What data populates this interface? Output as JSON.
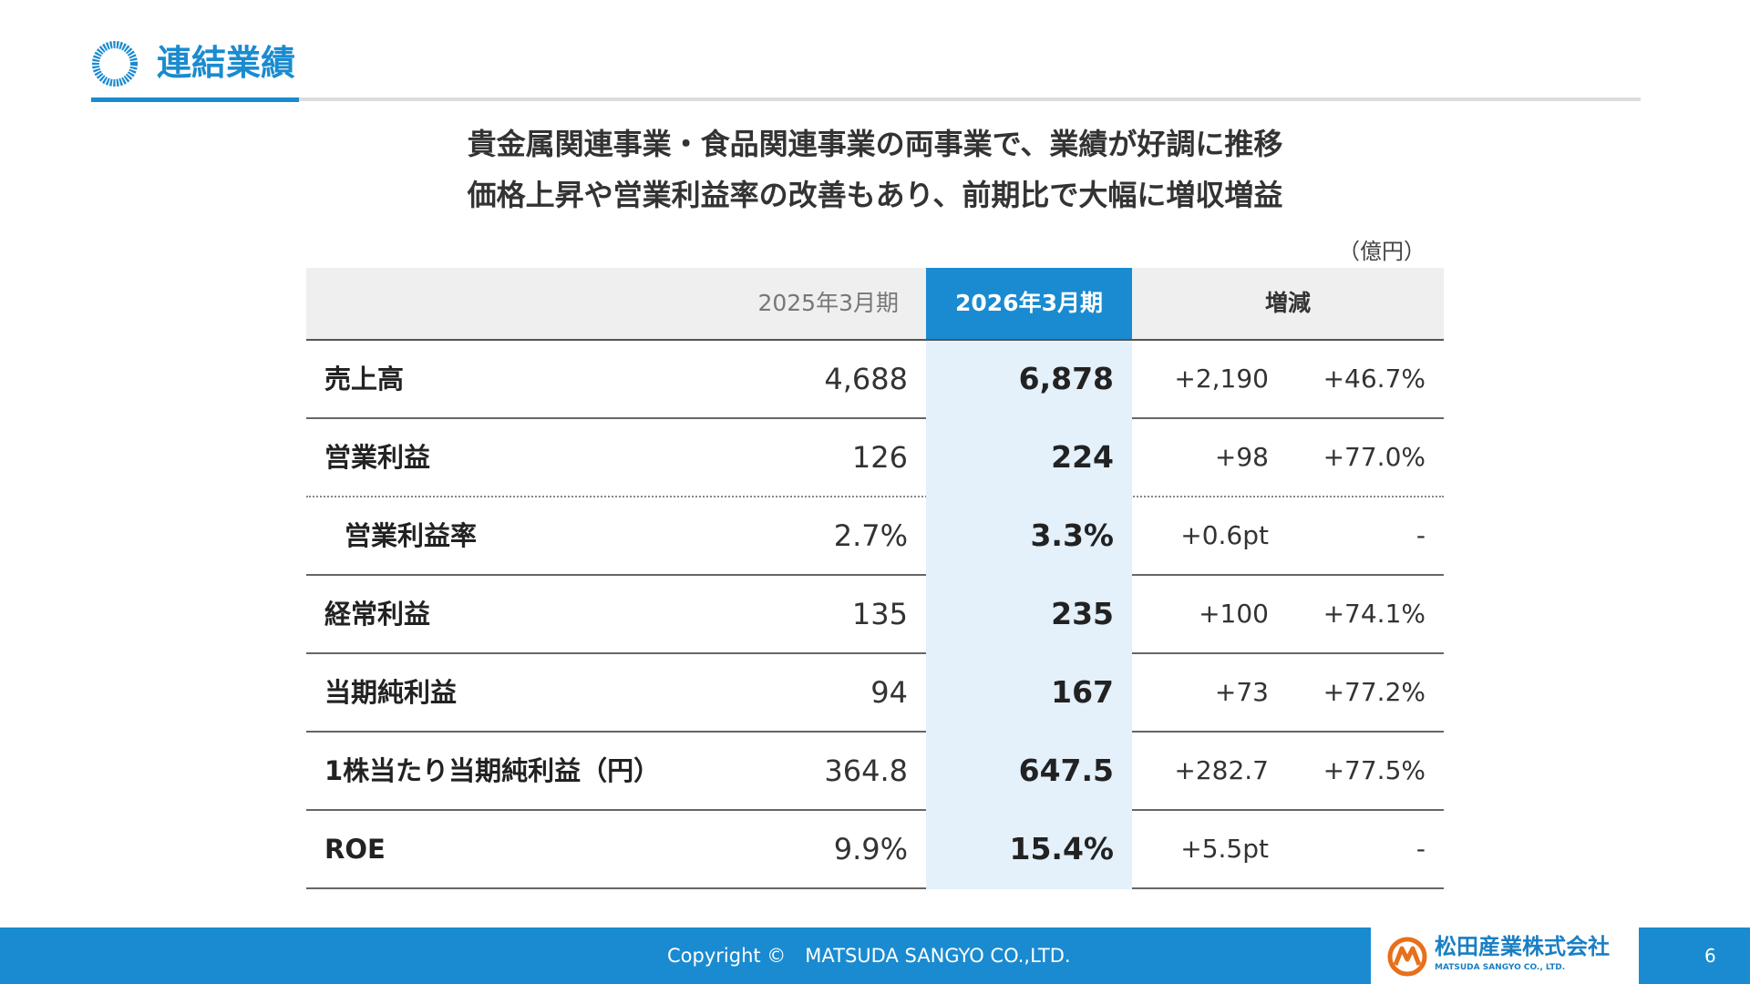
{
  "header": {
    "title": "連結業績",
    "icon": "ring-icon"
  },
  "headline": {
    "line1": "貴金属関連事業・食品関連事業の両事業で、業績が好調に推移",
    "line2": "価格上昇や営業利益率の改善もあり、前期比で大幅に増収増益"
  },
  "table": {
    "unit": "（億円）",
    "headers": {
      "prev": "2025年3月期",
      "cur": "2026年3月期",
      "change": "増減"
    },
    "rows": [
      {
        "label": "売上高",
        "prev": "4,688",
        "cur": "6,878",
        "change": "+2,190",
        "pct": "+46.7%"
      },
      {
        "label": "営業利益",
        "prev": "126",
        "cur": "224",
        "change": "+98",
        "pct": "+77.0%"
      },
      {
        "label": "営業利益率",
        "prev": "2.7%",
        "cur": "3.3%",
        "change": "+0.6pt",
        "pct": "-"
      },
      {
        "label": "経常利益",
        "prev": "135",
        "cur": "235",
        "change": "+100",
        "pct": "+74.1%"
      },
      {
        "label": "当期純利益",
        "prev": "94",
        "cur": "167",
        "change": "+73",
        "pct": "+77.2%"
      },
      {
        "label": "1株当たり当期純利益（円）",
        "prev": "364.8",
        "cur": "647.5",
        "change": "+282.7",
        "pct": "+77.5%"
      },
      {
        "label": "ROE",
        "prev": "9.9%",
        "cur": "15.4%",
        "change": "+5.5pt",
        "pct": "-"
      }
    ]
  },
  "footer": {
    "copyright": "Copyright ©　MATSUDA SANGYO CO.,LTD.",
    "logo_jp": "松田産業株式会社",
    "logo_en": "MATSUDA SANGYO CO., LTD.",
    "logo_icon": "matsuda-logo-icon",
    "page_number": "6"
  },
  "colors": {
    "accent": "#1a8bd0",
    "current_column_bg": "#e4f0fa",
    "logo_orange": "#e8701a"
  }
}
